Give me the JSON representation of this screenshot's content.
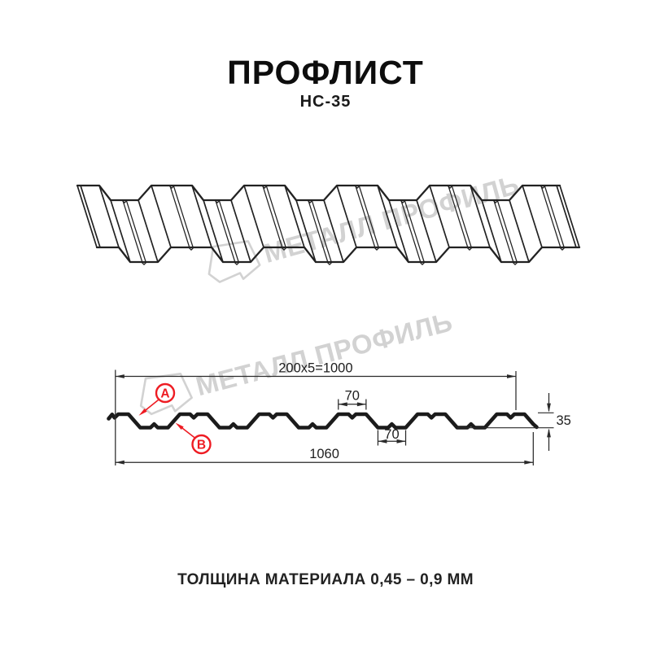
{
  "header": {
    "title": "ПРОФЛИСТ",
    "subtitle": "НС-35"
  },
  "caption": "ТОЛЩИНА МАТЕРИАЛА 0,45 – 0,9 ММ",
  "watermark": {
    "text": "МЕТАЛЛ ПРОФИЛЬ",
    "color": "#d2d2d2",
    "logo": "metall-profil-logo"
  },
  "cross_section": {
    "labels": {
      "pitch": "200x5=1000",
      "crest_width": "70",
      "valley_width": "70",
      "total_width": "1060",
      "height": "35"
    },
    "callouts": [
      {
        "id": "A",
        "letter": "А"
      },
      {
        "id": "B",
        "letter": "В"
      }
    ],
    "profile_mm": {
      "period": 200,
      "periods": 5,
      "crest_flat": 70,
      "valley_flat": 70,
      "height": 35,
      "total_width": 1060
    },
    "colors": {
      "profile": "#1b1b1b",
      "dimension": "#2a2a2a",
      "callout": "#ee1c23"
    }
  }
}
